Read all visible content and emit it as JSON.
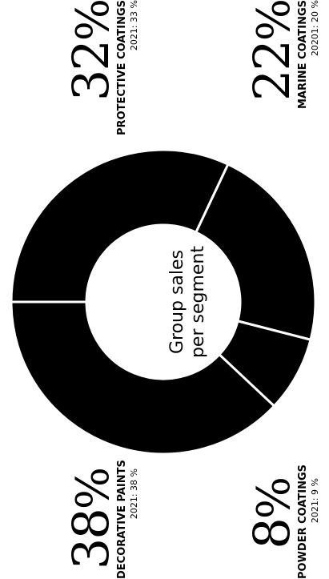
{
  "chart_data": {
    "type": "pie",
    "center_label": [
      "Group sales",
      "per segment"
    ],
    "slices": [
      {
        "name": "PROTECTIVE COATINGS",
        "value": 32,
        "label": "32",
        "unit": "%",
        "previous": "2021: 33 %"
      },
      {
        "name": "MARINE COATINGS",
        "value": 22,
        "label": "22",
        "unit": "%",
        "previous": "20201: 20 %"
      },
      {
        "name": "POWDER COATINGS",
        "value": 8,
        "label": "8",
        "unit": "%",
        "previous": "2021: 9 %"
      },
      {
        "name": "DECORATIVE PAINTS",
        "value": 38,
        "label": "38",
        "unit": "%",
        "previous": "2021: 38 %"
      }
    ],
    "colors": {
      "slice": "#000000",
      "separator": "#ffffff",
      "background": "#ffffff"
    }
  }
}
